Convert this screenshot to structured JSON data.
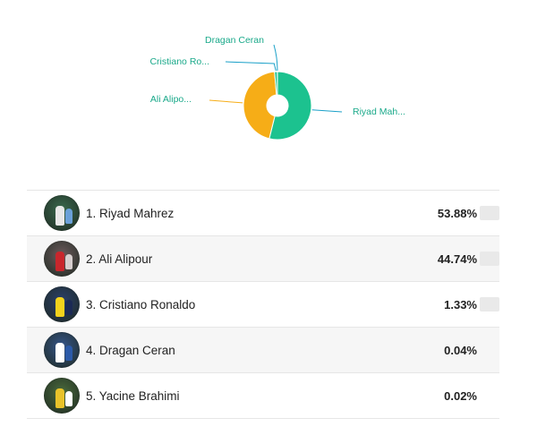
{
  "chart_data": {
    "type": "pie",
    "categories": [
      "Riyad Mah...",
      "Ali Alipo...",
      "Cristiano Ro...",
      "Dragan Ceran"
    ],
    "values": [
      53.88,
      44.74,
      1.33,
      0.04
    ],
    "colors": [
      "#1cc28f",
      "#f6ad17",
      "#1cc28f",
      "#1cc28f"
    ],
    "style": "donut"
  },
  "ranking": [
    {
      "label": "1. Riyad Mahrez",
      "percent": "53.88%",
      "share": 53.88,
      "avatar": {
        "bg": "#3b6a4e",
        "kit": "#e8e8e8",
        "kit2": "#6aa0d8"
      }
    },
    {
      "label": "2. Ali Alipour",
      "percent": "44.74%",
      "share": 44.74,
      "avatar": {
        "bg": "#6d5a5c",
        "kit": "#c9262c",
        "kit2": "#d7cfcf"
      }
    },
    {
      "label": "3. Cristiano Ronaldo",
      "percent": "1.33%",
      "share": 1.33,
      "avatar": {
        "bg": "#2a3f6b",
        "kit": "#f2d21c",
        "kit2": "#1b2a55"
      }
    },
    {
      "label": "4. Dragan Ceran",
      "percent": "0.04%",
      "share": 0.04,
      "avatar": {
        "bg": "#35558a",
        "kit": "#ffffff",
        "kit2": "#2c5aa8"
      }
    },
    {
      "label": "5. Yacine Brahimi",
      "percent": "0.02%",
      "share": 0.02,
      "avatar": {
        "bg": "#4a6a3c",
        "kit": "#e8c22a",
        "kit2": "#ffffff"
      }
    }
  ]
}
